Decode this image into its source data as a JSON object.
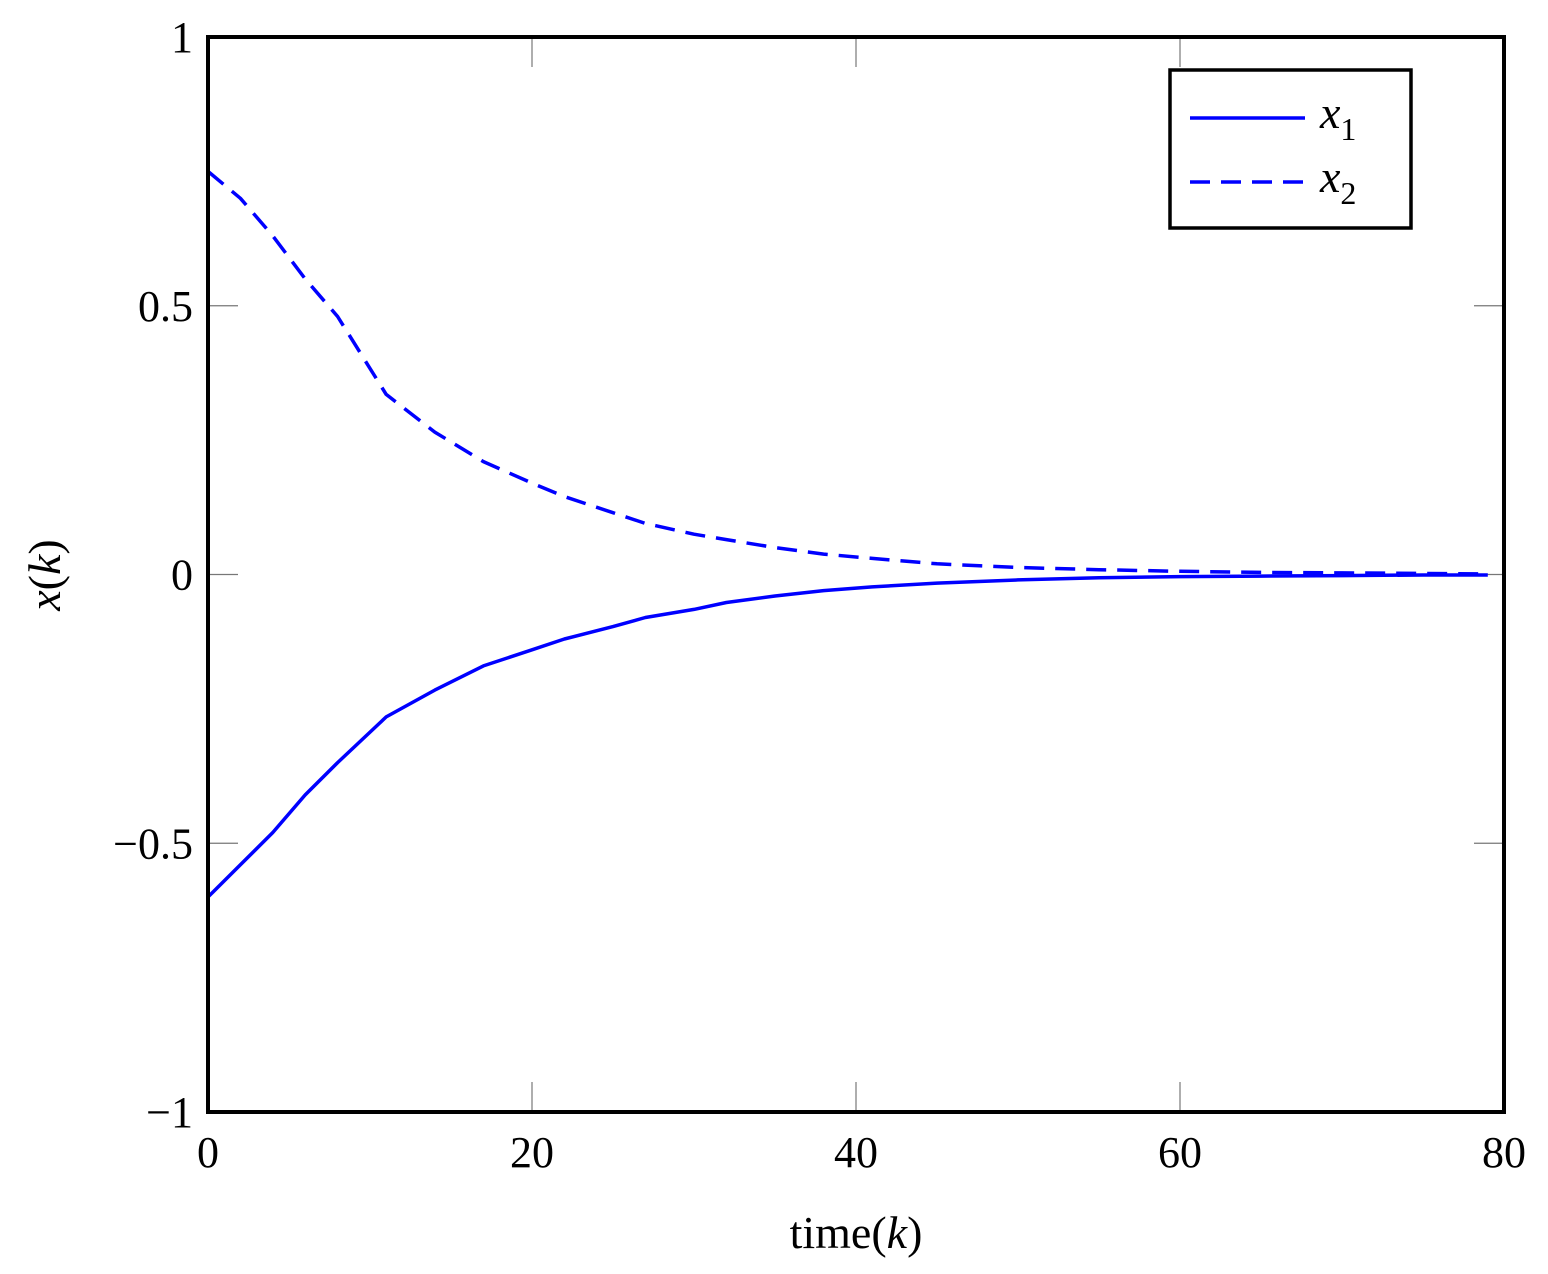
{
  "chart_data": {
    "type": "line",
    "title": "",
    "xlabel": {
      "prefix": "time(",
      "var": "k",
      "suffix": ")"
    },
    "ylabel": {
      "prefix": "x",
      "open": "(",
      "var": "k",
      "close": ")"
    },
    "xlim": [
      0,
      80
    ],
    "ylim": [
      -1,
      1
    ],
    "xticks": [
      0,
      20,
      40,
      60,
      80
    ],
    "xtick_labels": [
      "0",
      "20",
      "40",
      "60",
      "80"
    ],
    "yticks": [
      -1,
      -0.5,
      0,
      0.5,
      1
    ],
    "ytick_labels": [
      "−1",
      "−0.5",
      "0",
      "0.5",
      "1"
    ],
    "grid": false,
    "legend_position": "top-right",
    "colors": {
      "series": "#0000ff",
      "axes": "#000000"
    },
    "series": [
      {
        "name": "x1",
        "name_base": "x",
        "name_sub": "1",
        "style": "solid",
        "x": [
          0,
          2,
          4,
          6,
          8,
          11,
          14,
          17,
          20,
          22,
          25,
          27,
          30,
          32,
          35,
          38,
          41,
          45,
          50,
          55,
          60,
          65,
          70,
          75,
          79
        ],
        "y": [
          -0.6,
          -0.54,
          -0.48,
          -0.41,
          -0.35,
          -0.265,
          -0.215,
          -0.17,
          -0.14,
          -0.12,
          -0.097,
          -0.08,
          -0.065,
          -0.052,
          -0.04,
          -0.03,
          -0.023,
          -0.016,
          -0.01,
          -0.006,
          -0.004,
          -0.003,
          -0.002,
          -0.001,
          -0.001
        ]
      },
      {
        "name": "x2",
        "name_base": "x",
        "name_sub": "2",
        "style": "dashed",
        "x": [
          0,
          2,
          4,
          6,
          8,
          11,
          14,
          17,
          20,
          22,
          25,
          27,
          30,
          32,
          35,
          38,
          41,
          45,
          50,
          55,
          60,
          65,
          70,
          75,
          79
        ],
        "y": [
          0.75,
          0.7,
          0.63,
          0.55,
          0.48,
          0.335,
          0.265,
          0.21,
          0.17,
          0.145,
          0.115,
          0.095,
          0.075,
          0.065,
          0.05,
          0.038,
          0.03,
          0.02,
          0.013,
          0.009,
          0.006,
          0.004,
          0.003,
          0.002,
          0.001
        ]
      }
    ]
  }
}
